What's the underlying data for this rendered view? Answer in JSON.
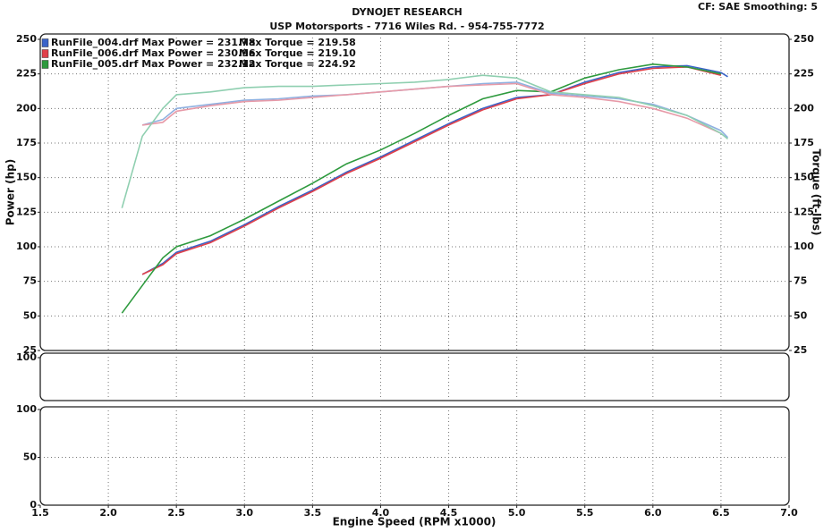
{
  "chart_data": [
    {
      "type": "line",
      "title": "DYNOJET RESEARCH",
      "subtitle": "USP Motorsports - 7716 Wiles Rd. - 954-755-7772",
      "settings_text": "CF: SAE  Smoothing: 5",
      "ylabel": "Power (hp)",
      "y2label": "Torque (ft-lbs)",
      "ylim": [
        25,
        250
      ],
      "yticks": [
        25,
        50,
        75,
        100,
        125,
        150,
        175,
        200,
        225,
        250
      ],
      "y2lim": [
        25,
        250
      ],
      "y2ticks": [
        25,
        50,
        75,
        100,
        125,
        150,
        175,
        200,
        225,
        250
      ],
      "xlim": [
        1.5,
        7.0
      ],
      "grid": true,
      "legend": [
        {
          "color": "#3a63c8",
          "label": "RunFile_004.drf Max Power = 231.78",
          "torque_label": "Max Torque = 219.58"
        },
        {
          "color": "#e0404a",
          "label": "RunFile_006.drf Max Power = 230.96",
          "torque_label": "Max Torque = 219.10"
        },
        {
          "color": "#2e9a3e",
          "label": "RunFile_005.drf Max Power = 232.12",
          "torque_label": "Max Torque = 224.92"
        }
      ],
      "x": [
        2.1,
        2.25,
        2.4,
        2.5,
        2.75,
        3.0,
        3.25,
        3.5,
        3.75,
        4.0,
        4.25,
        4.5,
        4.75,
        5.0,
        5.25,
        5.5,
        5.75,
        6.0,
        6.25,
        6.5,
        6.55
      ],
      "series": [
        {
          "color": "#3a63c8",
          "values": [
            null,
            80,
            88,
            96,
            104,
            116,
            129,
            141,
            154,
            165,
            177,
            189,
            200,
            208,
            210,
            219,
            226,
            230,
            231,
            226,
            223
          ]
        },
        {
          "color": "#e0404a",
          "values": [
            null,
            80,
            87,
            95,
            103,
            115,
            128,
            140,
            153,
            164,
            176,
            188,
            199,
            207,
            210,
            218,
            225,
            229,
            230,
            224,
            null
          ]
        },
        {
          "color": "#2e9a3e",
          "values": [
            52,
            72,
            92,
            100,
            108,
            120,
            133,
            146,
            160,
            170,
            182,
            195,
            207,
            213,
            212,
            222,
            228,
            232,
            230,
            225,
            null
          ]
        },
        {
          "color": "#8fb0e0",
          "axis": "y2",
          "values": [
            null,
            188,
            192,
            200,
            203,
            206,
            207,
            209,
            210,
            212,
            214,
            216,
            218,
            219,
            211,
            209,
            207,
            203,
            195,
            184,
            179
          ]
        },
        {
          "color": "#e79aa8",
          "axis": "y2",
          "values": [
            null,
            188,
            190,
            198,
            202,
            205,
            206,
            208,
            210,
            212,
            214,
            216,
            217,
            218,
            210,
            208,
            205,
            200,
            193,
            182,
            null
          ]
        },
        {
          "color": "#8fcfb0",
          "axis": "y2",
          "values": [
            128,
            180,
            200,
            210,
            212,
            215,
            216,
            216,
            217,
            218,
            219,
            221,
            224,
            222,
            212,
            210,
            208,
            202,
            195,
            182,
            178
          ]
        }
      ]
    },
    {
      "type": "line",
      "ylim": [
        0,
        100
      ],
      "yticks": [
        100
      ],
      "xlim": [
        1.5,
        7.0
      ],
      "grid": true
    },
    {
      "type": "line",
      "ylim": [
        0,
        100
      ],
      "yticks": [
        0,
        50,
        100
      ],
      "xlim": [
        1.5,
        7.0
      ],
      "grid": true,
      "xlabel": "Engine Speed (RPM x1000)",
      "xticks": [
        1.5,
        {
          "value": 2,
          "label": "2.0"
        },
        2.5,
        {
          "value": 3,
          "label": "3.0"
        },
        3.5,
        {
          "value": 4,
          "label": "4.0"
        },
        4.5,
        {
          "value": 5,
          "label": "5.0"
        },
        5.5,
        {
          "value": 6,
          "label": "6.0"
        },
        6.5,
        {
          "value": 7,
          "label": "7.0"
        }
      ]
    }
  ]
}
